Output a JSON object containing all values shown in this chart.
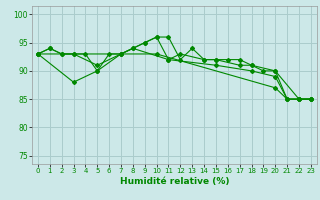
{
  "xlabel": "Humidité relative (%)",
  "bg_color": "#cce8e8",
  "grid_color": "#aacccc",
  "line_color": "#008800",
  "xlim": [
    -0.5,
    23.5
  ],
  "ylim": [
    73.5,
    101.5
  ],
  "yticks": [
    75,
    80,
    85,
    90,
    95,
    100
  ],
  "xticks": [
    0,
    1,
    2,
    3,
    4,
    5,
    6,
    7,
    8,
    9,
    10,
    11,
    12,
    13,
    14,
    15,
    16,
    17,
    18,
    19,
    20,
    21,
    22,
    23
  ],
  "series": [
    {
      "x": [
        0,
        1,
        2,
        3,
        4,
        5,
        6,
        7,
        8,
        9,
        10,
        11,
        12,
        13,
        14,
        15,
        16,
        17,
        18,
        19,
        20,
        21,
        22,
        23
      ],
      "y": [
        93,
        94,
        93,
        93,
        93,
        90,
        93,
        93,
        94,
        95,
        96,
        96,
        92,
        94,
        92,
        92,
        92,
        92,
        91,
        90,
        90,
        85,
        85,
        85
      ]
    },
    {
      "x": [
        0,
        1,
        2,
        3,
        5,
        7,
        9,
        10,
        11,
        12,
        14,
        15,
        17,
        18,
        20,
        22,
        23
      ],
      "y": [
        93,
        94,
        93,
        93,
        91,
        93,
        95,
        96,
        92,
        93,
        92,
        92,
        91,
        91,
        90,
        85,
        85
      ]
    },
    {
      "x": [
        0,
        3,
        5,
        7,
        8,
        11,
        15,
        18,
        20,
        21,
        22,
        23
      ],
      "y": [
        93,
        88,
        90,
        93,
        94,
        92,
        91,
        90,
        89,
        85,
        85,
        85
      ]
    },
    {
      "x": [
        0,
        10,
        20,
        21,
        22,
        23
      ],
      "y": [
        93,
        93,
        87,
        85,
        85,
        85
      ]
    }
  ]
}
